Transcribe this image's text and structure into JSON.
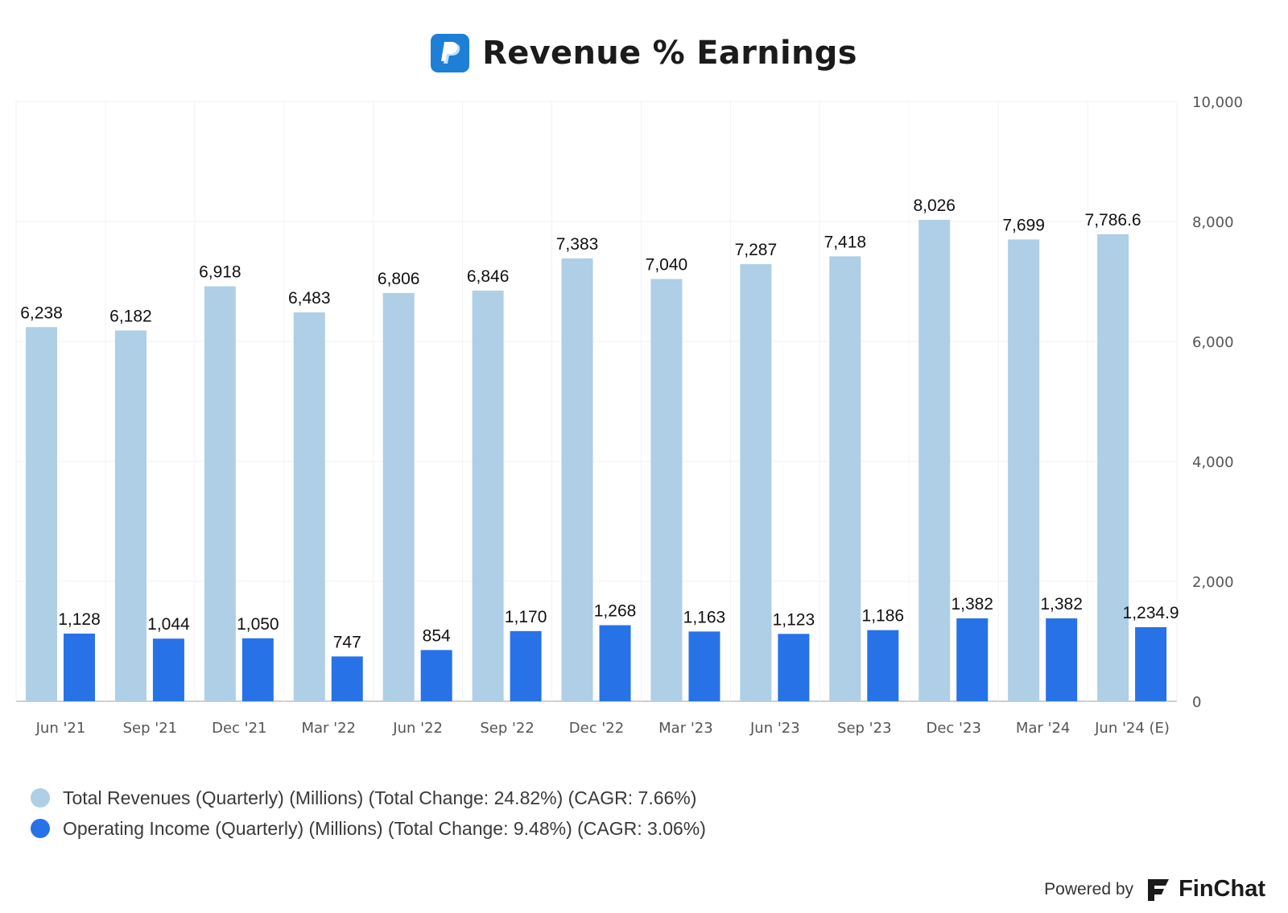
{
  "header": {
    "title": "Revenue % Earnings",
    "logo_icon": "paypal-logo-icon"
  },
  "chart_data": {
    "type": "bar",
    "title": "Revenue % Earnings",
    "categories": [
      "Jun '21",
      "Sep '21",
      "Dec '21",
      "Mar '22",
      "Jun '22",
      "Sep '22",
      "Dec '22",
      "Mar '23",
      "Jun '23",
      "Sep '23",
      "Dec '23",
      "Mar '24",
      "Jun '24 (E)"
    ],
    "series": [
      {
        "name": "Total Revenues (Quarterly) (Millions) (Total Change: 24.82%) (CAGR: 7.66%)",
        "color": "#aecfe6",
        "values": [
          6238,
          6182,
          6918,
          6483,
          6806,
          6846,
          7383,
          7040,
          7287,
          7418,
          8026,
          7699,
          7786.6
        ],
        "labels": [
          "6,238",
          "6,182",
          "6,918",
          "6,483",
          "6,806",
          "6,846",
          "7,383",
          "7,040",
          "7,287",
          "7,418",
          "8,026",
          "7,699",
          "7,786.6"
        ]
      },
      {
        "name": "Operating Income (Quarterly) (Millions) (Total Change: 9.48%) (CAGR: 3.06%)",
        "color": "#2872e8",
        "values": [
          1128,
          1044,
          1050,
          747,
          854,
          1170,
          1268,
          1163,
          1123,
          1186,
          1382,
          1382,
          1234.9
        ],
        "labels": [
          "1,128",
          "1,044",
          "1,050",
          "747",
          "854",
          "1,170",
          "1,268",
          "1,163",
          "1,123",
          "1,186",
          "1,382",
          "1,382",
          "1,234.9"
        ]
      }
    ],
    "ylim": [
      0,
      10000
    ],
    "yticks": [
      0,
      2000,
      4000,
      6000,
      8000,
      10000
    ],
    "ytick_labels": [
      "0",
      "2,000",
      "4,000",
      "6,000",
      "8,000",
      "10,000"
    ],
    "y_axis_side": "right",
    "grid": true,
    "legend_position": "bottom-left"
  },
  "footer": {
    "powered_by": "Powered by",
    "brand": "FinChat",
    "brand_icon": "finchat-logo-icon"
  }
}
